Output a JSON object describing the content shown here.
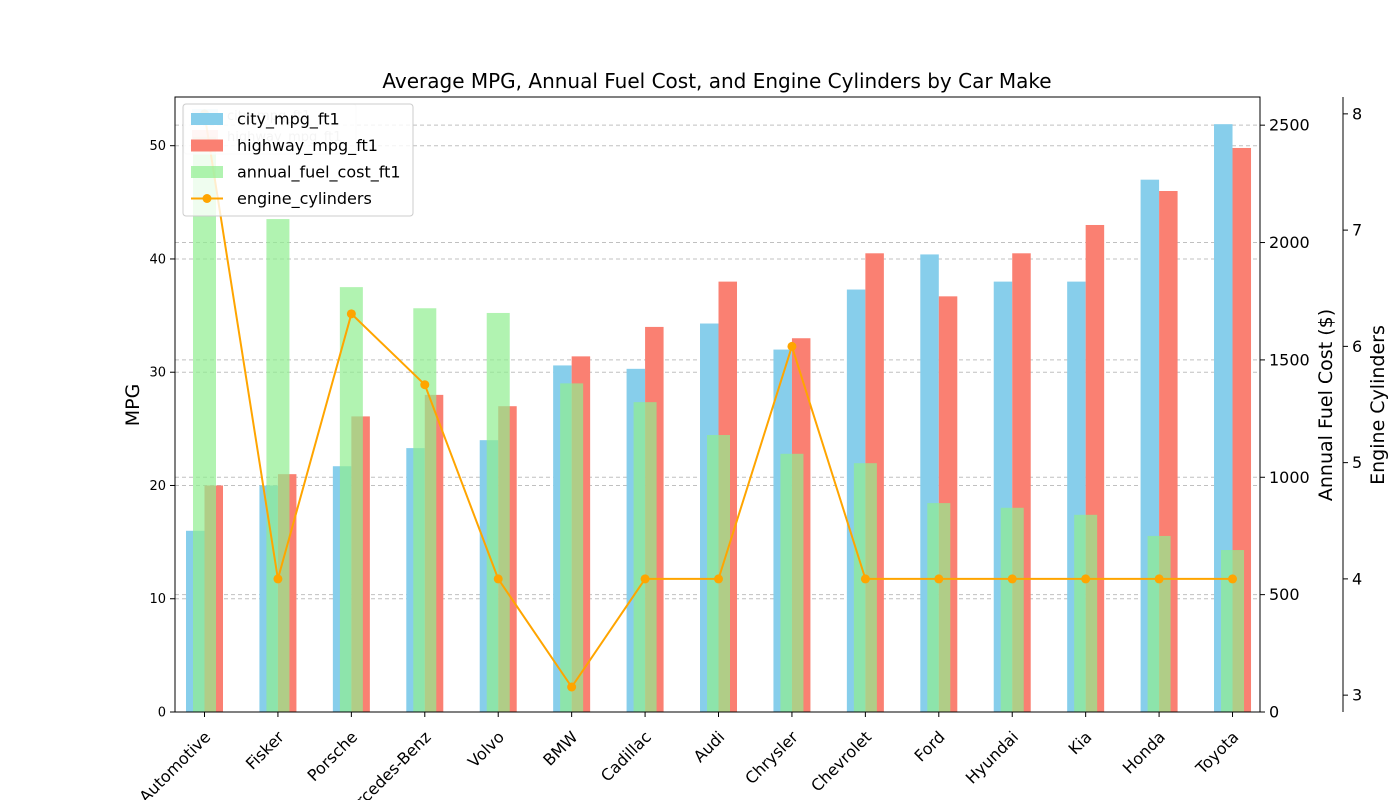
{
  "chart_data": {
    "type": "bar",
    "title": "Average MPG, Annual Fuel Cost, and Engine Cylinders by Car Make",
    "categories": [
      "Azure Dynamics",
      "Fisker",
      "Porsche",
      "Mercedes-Benz",
      "Volvo",
      "BMW",
      "Cadillac",
      "Audi",
      "Chrysler",
      "Chevrolet",
      "Ford",
      "Hyundai",
      "Kia",
      "Honda",
      "Toyota"
    ],
    "category_labels_visible": [
      "e Automotive",
      "Fisker",
      "Porsche",
      "rcedes-Benz",
      "Volvo",
      "BMW",
      "Cadillac",
      "Audi",
      "Chrysler",
      "Chevrolet",
      "Ford",
      "Hyundai",
      "Kia",
      "Honda",
      "Toyota"
    ],
    "series": [
      {
        "name": "city_mpg_ft1",
        "axis": "left",
        "kind": "bar",
        "color": "#87ceeb",
        "values": [
          16,
          20,
          21.7,
          23.3,
          24,
          30.6,
          30.3,
          34.3,
          32,
          37.3,
          40.4,
          38,
          38,
          47,
          51.9
        ]
      },
      {
        "name": "highway_mpg_ft1",
        "axis": "left",
        "kind": "bar",
        "color": "#fa8072",
        "values": [
          20,
          21,
          26.1,
          28,
          27,
          31.4,
          34,
          38,
          33,
          40.5,
          36.7,
          40.5,
          43,
          46,
          49.8
        ]
      },
      {
        "name": "annual_fuel_cost_ft1",
        "axis": "right1",
        "kind": "bar",
        "color": "#90ee90",
        "values": [
          2450,
          2100,
          1810,
          1720,
          1700,
          1400,
          1320,
          1180,
          1100,
          1060,
          890,
          870,
          840,
          750,
          690
        ]
      },
      {
        "name": "engine_cylinders",
        "axis": "right2",
        "kind": "line",
        "color": "#ffa500",
        "values": [
          8,
          4,
          6.28,
          5.67,
          4,
          3.07,
          4,
          4,
          6,
          4,
          4,
          4,
          4,
          4,
          4
        ]
      }
    ],
    "ghost_legend": [
      "city_mpg_ft1",
      "highway_mpg_ft1"
    ],
    "ylabel": "MPG",
    "ylim": [
      0,
      54.3
    ],
    "yticks": [
      0,
      10,
      20,
      30,
      40,
      50
    ],
    "y2label": "Annual Fuel Cost ($)",
    "y2lim": [
      0,
      2620
    ],
    "y2ticks": [
      0,
      500,
      1000,
      1500,
      2000,
      2500
    ],
    "y3label": "Engine Cylinders",
    "y3lim": [
      2.855,
      8.145
    ],
    "y3ticks": [
      3,
      4,
      5,
      6,
      7,
      8
    ],
    "grid": "horizontal-dashed",
    "legend_position": "top-left"
  }
}
